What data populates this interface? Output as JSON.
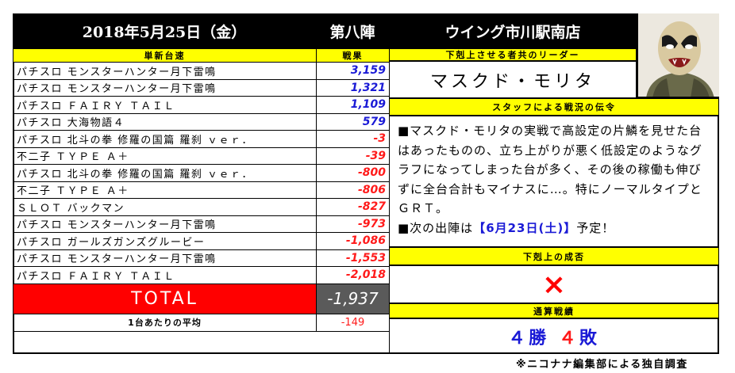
{
  "header": {
    "date": "2018年5月25日（金）",
    "event": "第八陣",
    "store": "ウイング市川駅南店"
  },
  "table": {
    "col_model": "単新台速",
    "col_result": "戦果",
    "rows": [
      {
        "model": "パチスロ モンスターハンター月下雷鳴",
        "result": "3,159",
        "sign": "pos"
      },
      {
        "model": "パチスロ モンスターハンター月下雷鳴",
        "result": "1,321",
        "sign": "pos"
      },
      {
        "model": "パチスロ ＦＡＩＲＹ ＴＡＩＬ",
        "result": "1,109",
        "sign": "pos"
      },
      {
        "model": "パチスロ 大海物語４",
        "result": "579",
        "sign": "pos"
      },
      {
        "model": "パチスロ 北斗の拳 修羅の国篇 羅刹 ｖｅｒ．",
        "result": "-3",
        "sign": "neg"
      },
      {
        "model": "不二子 ＴＹＰＥ Ａ＋",
        "result": "-39",
        "sign": "neg"
      },
      {
        "model": "パチスロ 北斗の拳 修羅の国篇 羅刹 ｖｅｒ．",
        "result": "-800",
        "sign": "neg"
      },
      {
        "model": "不二子 ＴＹＰＥ Ａ＋",
        "result": "-806",
        "sign": "neg"
      },
      {
        "model": "ＳＬＯＴ バックマン",
        "result": "-827",
        "sign": "neg"
      },
      {
        "model": "パチスロ モンスターハンター月下雷鳴",
        "result": "-973",
        "sign": "neg"
      },
      {
        "model": "パチスロ ガールズガンズグルービー",
        "result": "-1,086",
        "sign": "neg"
      },
      {
        "model": "パチスロ モンスターハンター月下雷鳴",
        "result": "-1,553",
        "sign": "neg"
      },
      {
        "model": "パチスロ ＦＡＩＲＹ ＴＡＩＬ",
        "result": "-2,018",
        "sign": "neg"
      }
    ],
    "total_label": "TOTAL",
    "total_value": "-1,937",
    "avg_label": "1台あたりの平均",
    "avg_value": "-149"
  },
  "leader": {
    "title": "下剋上させる者共のリーダー",
    "name": "マスクド・モリタ"
  },
  "comment": {
    "title": "スタッフによる戦況の伝令",
    "body": "■マスクド・モリタの実戦で高設定の片鱗を見せた台はあったものの、立ち上がりが悪く低設定のようなグラフになってしまった台が多く、その後の稼働も伸びずに全台合計もマイナスに…。特にノーマルタイプとＧＲＴ。",
    "next_prefix": "■次の出陣は",
    "next_date": "【6月23日(土)】",
    "next_suffix": "予定！"
  },
  "outcome": {
    "title": "下剋上の成否",
    "mark": "×"
  },
  "record": {
    "title": "通算戦績",
    "wins": "４",
    "win_word": "勝",
    "losses": "４",
    "loss_word": "敗"
  },
  "footer_note": "※ニコナナ編集部による独自調査",
  "colors": {
    "yellow": "#ffff00",
    "red": "#ff0000",
    "blue": "#1a1ad6",
    "header_bg": "#000000",
    "total_value_bg": "#5a5a5a"
  }
}
